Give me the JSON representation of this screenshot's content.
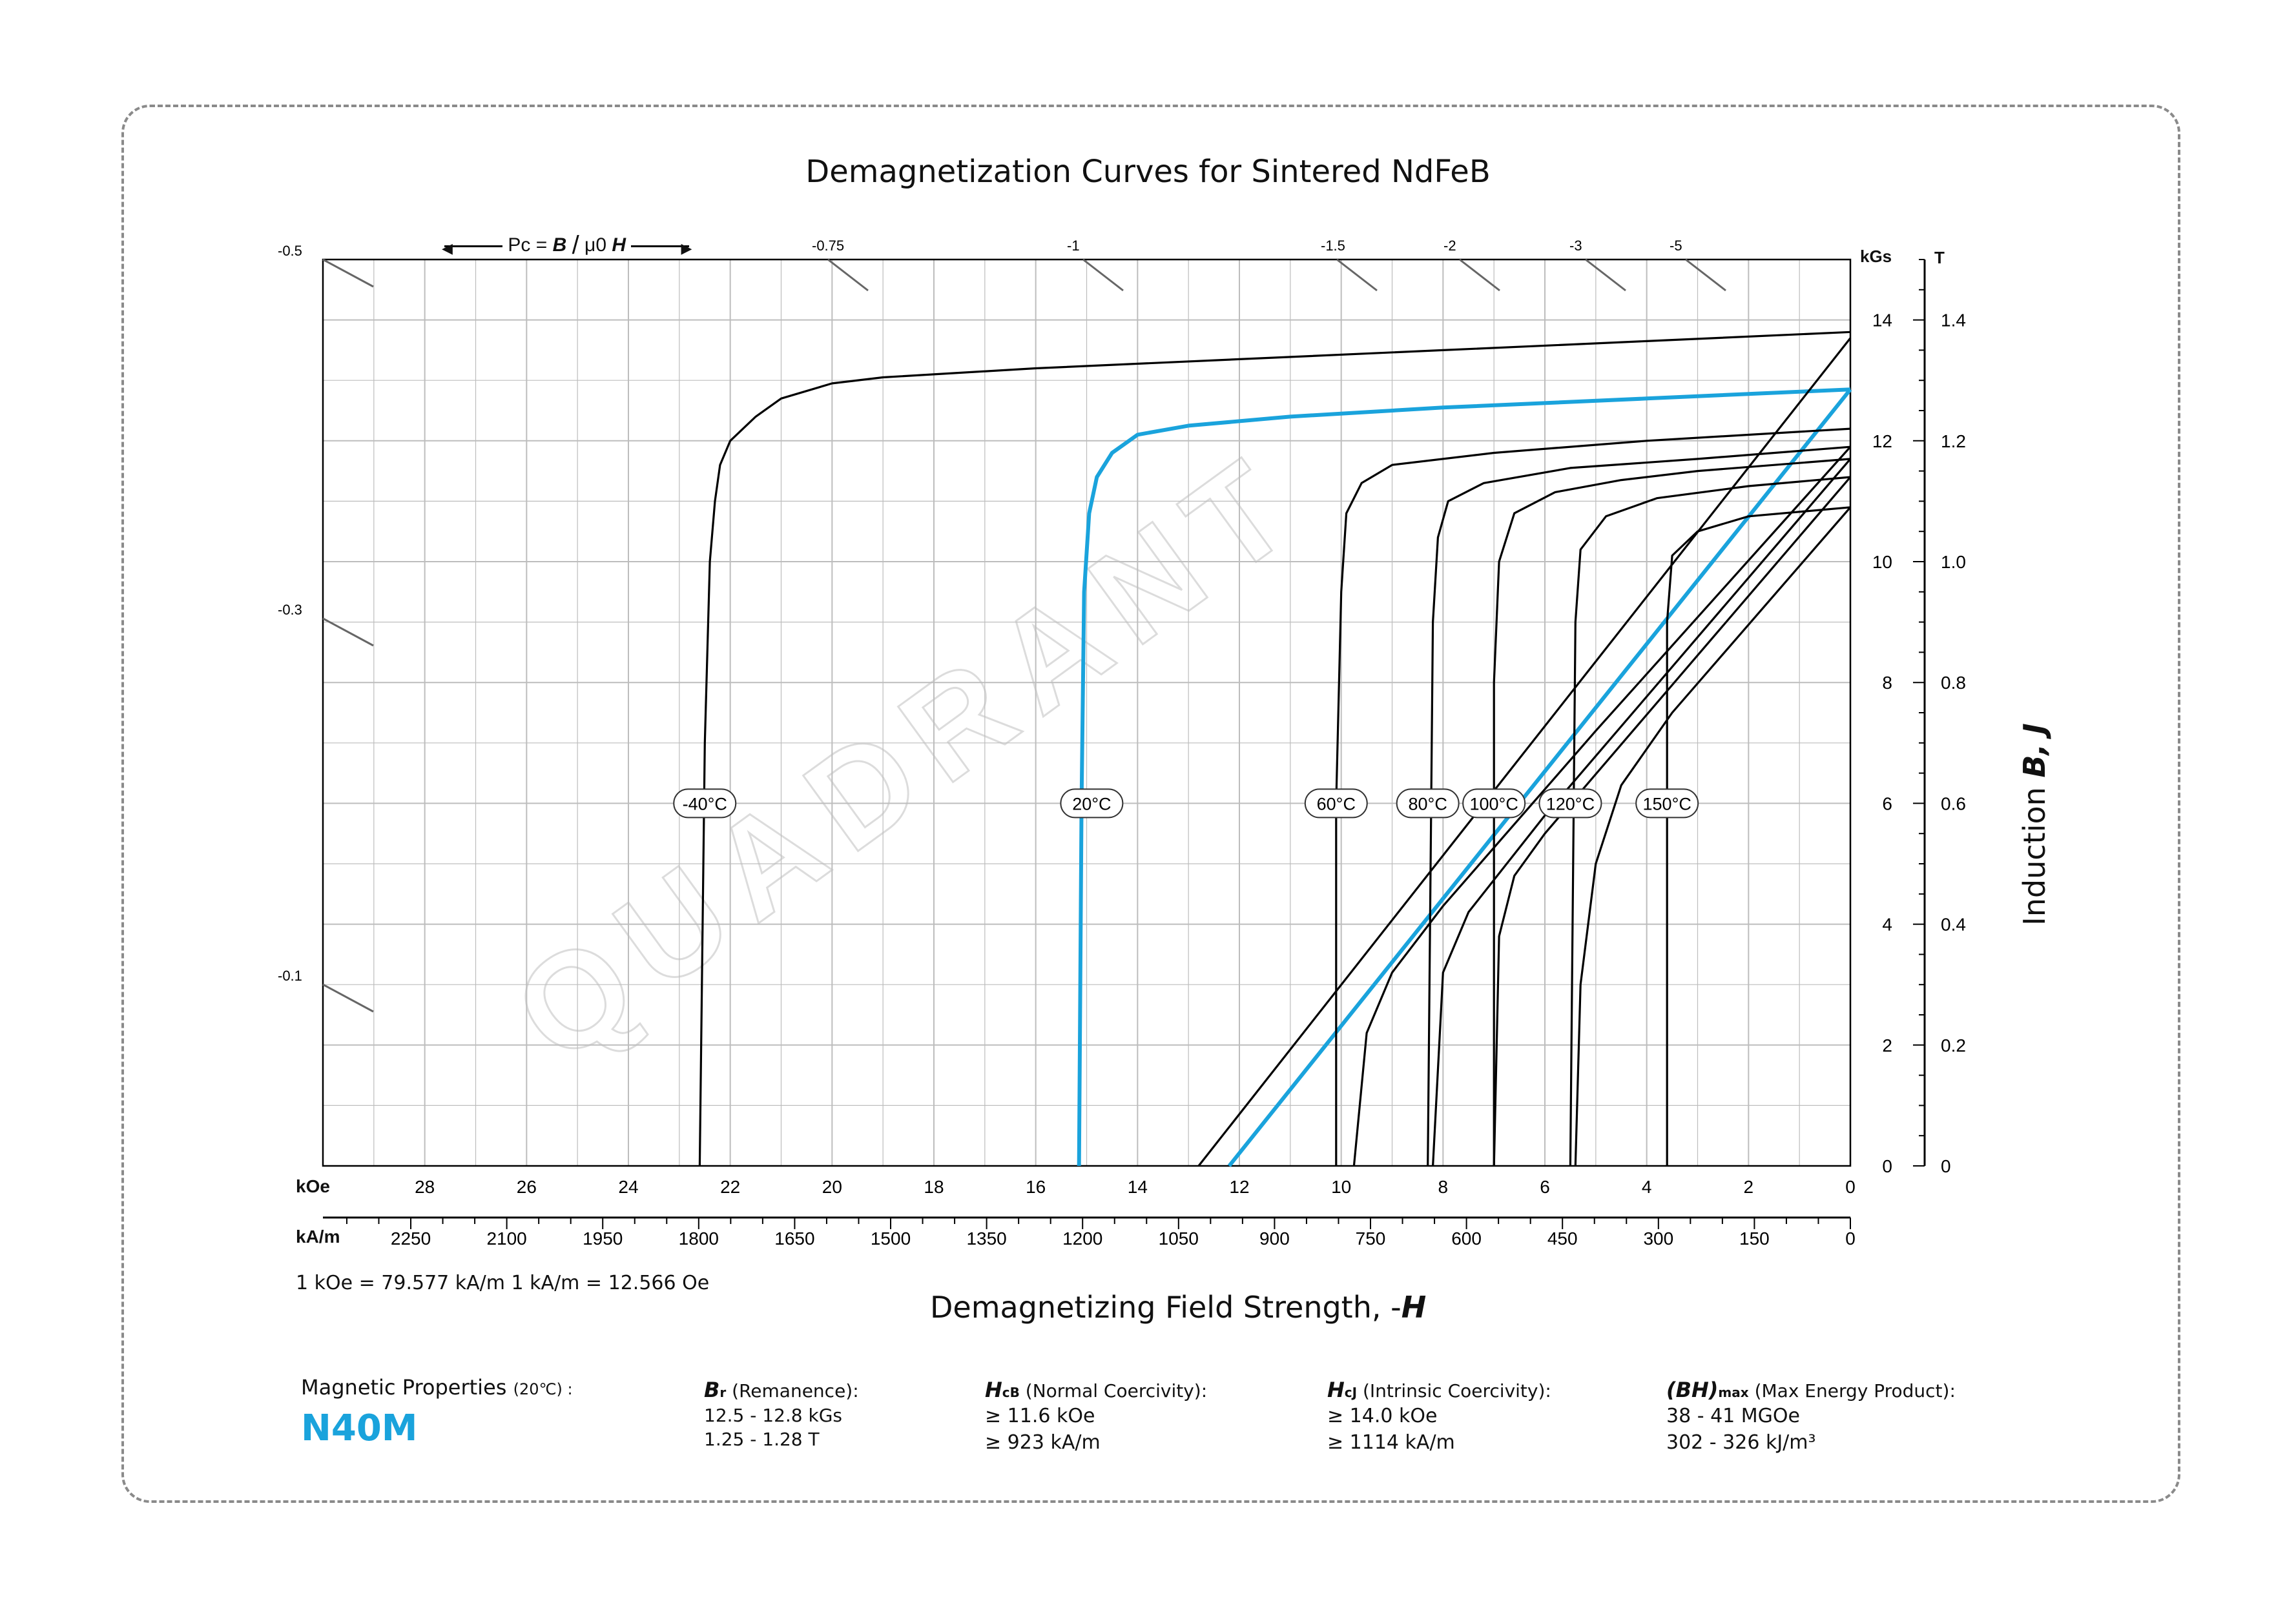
{
  "title": "Demagnetization Curves for Sintered NdFeB",
  "x_axis": {
    "label_prefix": "Demagnetizing Field Strength, -",
    "label_symbol": "H",
    "koe_unit": "kOe",
    "kam_unit": "kA/m",
    "koe_ticks": [
      "28",
      "26",
      "24",
      "22",
      "20",
      "18",
      "16",
      "14",
      "12",
      "10",
      "8",
      "6",
      "4",
      "2",
      "0"
    ],
    "kam_ticks": [
      "2250",
      "2100",
      "1950",
      "1800",
      "1650",
      "1500",
      "1350",
      "1200",
      "1050",
      "900",
      "750",
      "600",
      "450",
      "300",
      "150",
      "0"
    ],
    "conversion": "1 kOe = 79.577 kA/m   1 kA/m = 12.566 Oe"
  },
  "y_axis": {
    "kgs_unit": "kGs",
    "t_unit": "T",
    "kgs_ticks": [
      "14",
      "12",
      "10",
      "8",
      "6",
      "4",
      "2",
      "0"
    ],
    "t_ticks": [
      "1.4",
      "1.2",
      "1.0",
      "0.8",
      "0.6",
      "0.4",
      "0.2",
      "0"
    ],
    "label_prefix": "Induction",
    "label_b": "B,",
    "label_j": "J"
  },
  "permeance": {
    "label_pc": "Pc =",
    "label_b": "B",
    "label_mu": "μ0",
    "label_h": "H",
    "left_labels": [
      "-0.5",
      "-0.3",
      "-0.1"
    ],
    "top_labels": [
      "-0.75",
      "-1",
      "-1.5",
      "-2",
      "-3",
      "-5"
    ]
  },
  "watermark": "QUADRANT",
  "properties": {
    "heading": "Magnetic Properties",
    "heading_temp": "(20℃) :",
    "grade": "N40M",
    "br": {
      "symbol": "B",
      "sub": "r",
      "desc": "(Remanence):",
      "line1": "12.5 - 12.8 kGs",
      "line2": "1.25 - 1.28 T"
    },
    "hcb": {
      "symbol": "H",
      "sub": "cB",
      "desc": "(Normal Coercivity):",
      "line1": "≥ 11.6 kOe",
      "line2": "≥ 923 kA/m"
    },
    "hcj": {
      "symbol": "H",
      "sub": "cJ",
      "desc": "(Intrinsic Coercivity):",
      "line1": "≥ 14.0 kOe",
      "line2": "≥ 1114 kA/m"
    },
    "bhmax": {
      "symbol": "(BH)",
      "sub": "max",
      "desc": "(Max Energy Product):",
      "line1": "38 - 41 MGOe",
      "line2": "302 - 326 kJ/m³"
    }
  },
  "colors": {
    "highlight": "#1aa3dc",
    "curve": "#000000",
    "grid": "#bdbdbd"
  },
  "chart_data": {
    "type": "line",
    "title": "Demagnetization Curves for Sintered NdFeB",
    "xlabel": "Demagnetizing Field Strength, -H",
    "ylabel": "Induction B, J",
    "x_units": "kOe",
    "y_units": "kGs",
    "xlim": [
      30,
      0
    ],
    "ylim": [
      0,
      15
    ],
    "grid": true,
    "series": [
      {
        "name": "-40°C",
        "color": "#000000",
        "j_curve": [
          [
            0,
            13.8
          ],
          [
            4,
            13.65
          ],
          [
            8,
            13.5
          ],
          [
            12,
            13.35
          ],
          [
            16,
            13.2
          ],
          [
            19,
            13.05
          ],
          [
            20,
            12.95
          ],
          [
            21,
            12.7
          ],
          [
            21.5,
            12.4
          ],
          [
            22,
            12.0
          ],
          [
            22.2,
            11.6
          ],
          [
            22.3,
            11.0
          ],
          [
            22.4,
            10.0
          ],
          [
            22.5,
            7.0
          ],
          [
            22.6,
            0
          ]
        ]
      },
      {
        "name": "20°C",
        "color": "#1aa3dc",
        "highlight": true,
        "j_curve": [
          [
            0,
            12.85
          ],
          [
            4,
            12.7
          ],
          [
            8,
            12.55
          ],
          [
            11,
            12.4
          ],
          [
            13,
            12.25
          ],
          [
            14,
            12.1
          ],
          [
            14.5,
            11.8
          ],
          [
            14.8,
            11.4
          ],
          [
            14.95,
            10.8
          ],
          [
            15.05,
            9.5
          ],
          [
            15.1,
            6.0
          ],
          [
            15.15,
            0
          ]
        ],
        "b_line": [
          [
            0,
            12.85
          ],
          [
            12.2,
            0
          ]
        ]
      },
      {
        "name": "60°C",
        "color": "#000000",
        "j_curve": [
          [
            0,
            12.2
          ],
          [
            4,
            12.0
          ],
          [
            7,
            11.8
          ],
          [
            9,
            11.6
          ],
          [
            9.6,
            11.3
          ],
          [
            9.9,
            10.8
          ],
          [
            10.0,
            9.5
          ],
          [
            10.1,
            6.0
          ],
          [
            10.1,
            0
          ]
        ],
        "b_line": [
          [
            0,
            13.7
          ],
          [
            12.8,
            0
          ]
        ]
      },
      {
        "name": "80°C",
        "color": "#000000",
        "j_curve": [
          [
            0,
            11.9
          ],
          [
            3,
            11.7
          ],
          [
            5.5,
            11.55
          ],
          [
            7.2,
            11.3
          ],
          [
            7.9,
            11.0
          ],
          [
            8.1,
            10.4
          ],
          [
            8.2,
            9.0
          ],
          [
            8.3,
            0
          ]
        ]
      },
      {
        "name": "100°C",
        "color": "#000000",
        "j_curve": [
          [
            0,
            11.7
          ],
          [
            3,
            11.5
          ],
          [
            4.5,
            11.35
          ],
          [
            5.8,
            11.15
          ],
          [
            6.6,
            10.8
          ],
          [
            6.9,
            10.0
          ],
          [
            7.0,
            8.0
          ],
          [
            7.0,
            0
          ]
        ]
      },
      {
        "name": "120°C",
        "color": "#000000",
        "j_curve": [
          [
            0,
            11.4
          ],
          [
            2,
            11.25
          ],
          [
            3.8,
            11.05
          ],
          [
            4.8,
            10.75
          ],
          [
            5.3,
            10.2
          ],
          [
            5.4,
            9.0
          ],
          [
            5.5,
            0
          ]
        ]
      },
      {
        "name": "150°C",
        "color": "#000000",
        "j_curve": [
          [
            0,
            10.9
          ],
          [
            2,
            10.75
          ],
          [
            3.0,
            10.5
          ],
          [
            3.5,
            10.1
          ],
          [
            3.6,
            9.0
          ],
          [
            3.6,
            0
          ]
        ]
      }
    ],
    "b_curves_other": [
      {
        "name": "80°C",
        "points": [
          [
            0,
            11.9
          ],
          [
            5,
            7.2
          ],
          [
            8,
            4.3
          ],
          [
            9,
            3.2
          ],
          [
            9.5,
            2.2
          ],
          [
            9.75,
            0
          ]
        ]
      },
      {
        "name": "100°C",
        "points": [
          [
            0,
            11.7
          ],
          [
            6,
            5.8
          ],
          [
            7.5,
            4.2
          ],
          [
            8,
            3.2
          ],
          [
            8.2,
            0
          ]
        ]
      },
      {
        "name": "120°C",
        "points": [
          [
            0,
            11.4
          ],
          [
            6,
            5.5
          ],
          [
            6.6,
            4.8
          ],
          [
            6.9,
            3.8
          ],
          [
            7.0,
            0
          ]
        ]
      },
      {
        "name": "150°C",
        "points": [
          [
            0,
            10.9
          ],
          [
            3.5,
            7.5
          ],
          [
            4.5,
            6.3
          ],
          [
            5.0,
            5.0
          ],
          [
            5.3,
            3.0
          ],
          [
            5.4,
            0
          ]
        ]
      }
    ],
    "labels_at_y": 6.0,
    "label_x_kOe": [
      22.5,
      14.9,
      10.1,
      8.3,
      7.0,
      5.5,
      3.6
    ]
  }
}
